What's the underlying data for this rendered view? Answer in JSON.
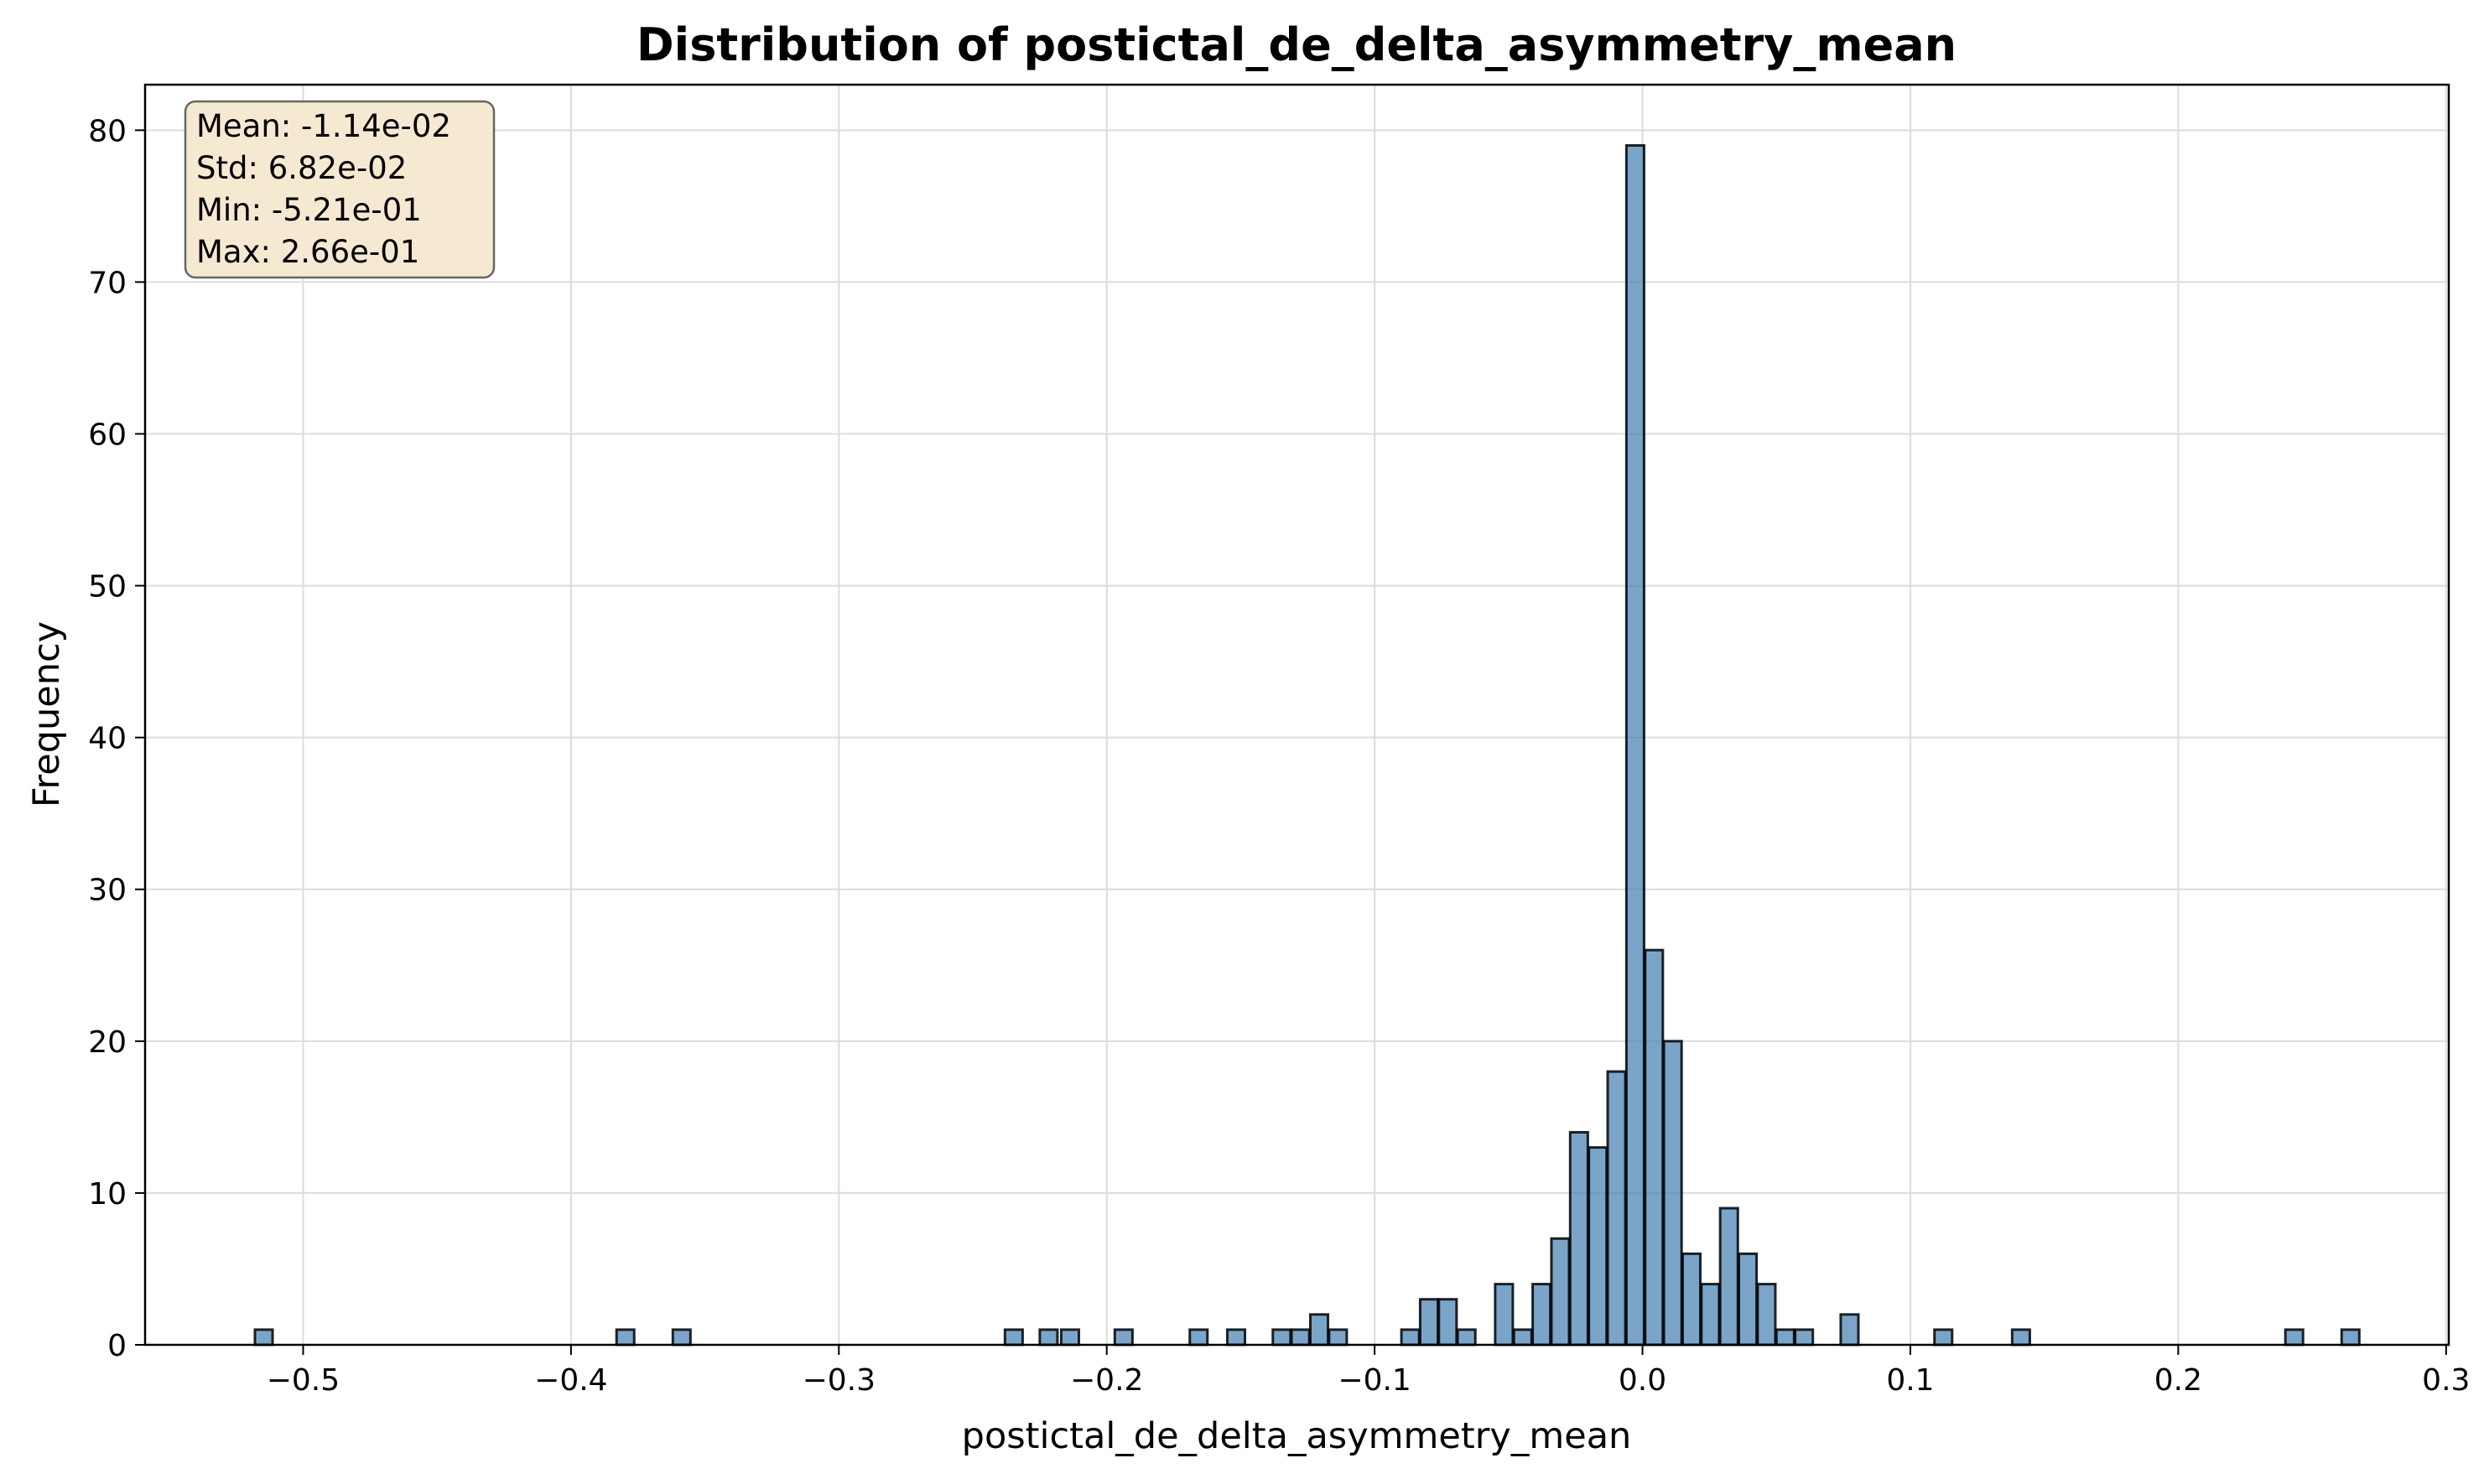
{
  "chart_data": {
    "type": "bar",
    "title": "Distribution of postictal_de_delta_asymmetry_mean",
    "xlabel": "postictal_de_delta_asymmetry_mean",
    "ylabel": "Frequency",
    "xlim": [
      -0.559,
      0.301
    ],
    "ylim": [
      0,
      83
    ],
    "grid": true,
    "bin_width": 0.0066,
    "bar_color": "#4682b4",
    "edge_color": "#000000",
    "xticks": [
      -0.5,
      -0.4,
      -0.3,
      -0.2,
      -0.1,
      0.0,
      0.1,
      0.2,
      0.3
    ],
    "xtick_labels": [
      "−0.5",
      "−0.4",
      "−0.3",
      "−0.2",
      "−0.1",
      "0.0",
      "0.1",
      "0.2",
      "0.3"
    ],
    "yticks": [
      0,
      10,
      20,
      30,
      40,
      50,
      60,
      70,
      80
    ],
    "ytick_labels": [
      "0",
      "10",
      "20",
      "30",
      "40",
      "50",
      "60",
      "70",
      "80"
    ],
    "bins": [
      {
        "x": -0.518,
        "count": 1
      },
      {
        "x": -0.383,
        "count": 1
      },
      {
        "x": -0.362,
        "count": 1
      },
      {
        "x": -0.238,
        "count": 1
      },
      {
        "x": -0.225,
        "count": 1
      },
      {
        "x": -0.217,
        "count": 1
      },
      {
        "x": -0.197,
        "count": 1
      },
      {
        "x": -0.169,
        "count": 1
      },
      {
        "x": -0.155,
        "count": 1
      },
      {
        "x": -0.138,
        "count": 1
      },
      {
        "x": -0.131,
        "count": 1
      },
      {
        "x": -0.124,
        "count": 2
      },
      {
        "x": -0.117,
        "count": 1
      },
      {
        "x": -0.09,
        "count": 1
      },
      {
        "x": -0.083,
        "count": 3
      },
      {
        "x": -0.076,
        "count": 3
      },
      {
        "x": -0.069,
        "count": 1
      },
      {
        "x": -0.055,
        "count": 4
      },
      {
        "x": -0.048,
        "count": 1
      },
      {
        "x": -0.041,
        "count": 4
      },
      {
        "x": -0.034,
        "count": 7
      },
      {
        "x": -0.027,
        "count": 14
      },
      {
        "x": -0.02,
        "count": 13
      },
      {
        "x": -0.013,
        "count": 18
      },
      {
        "x": -0.006,
        "count": 79
      },
      {
        "x": 0.001,
        "count": 26
      },
      {
        "x": 0.008,
        "count": 20
      },
      {
        "x": 0.015,
        "count": 6
      },
      {
        "x": 0.022,
        "count": 4
      },
      {
        "x": 0.029,
        "count": 9
      },
      {
        "x": 0.036,
        "count": 6
      },
      {
        "x": 0.043,
        "count": 4
      },
      {
        "x": 0.05,
        "count": 1
      },
      {
        "x": 0.057,
        "count": 1
      },
      {
        "x": 0.074,
        "count": 2
      },
      {
        "x": 0.109,
        "count": 1
      },
      {
        "x": 0.138,
        "count": 1
      },
      {
        "x": 0.24,
        "count": 1
      },
      {
        "x": 0.261,
        "count": 1
      }
    ],
    "stats_box": {
      "lines": [
        "Mean: -1.14e-02",
        "Std: 6.82e-02",
        "Min: -5.21e-01",
        "Max: 2.66e-01"
      ],
      "placement": "top-left",
      "background": "#f6e9d2",
      "border": "#666666"
    }
  }
}
